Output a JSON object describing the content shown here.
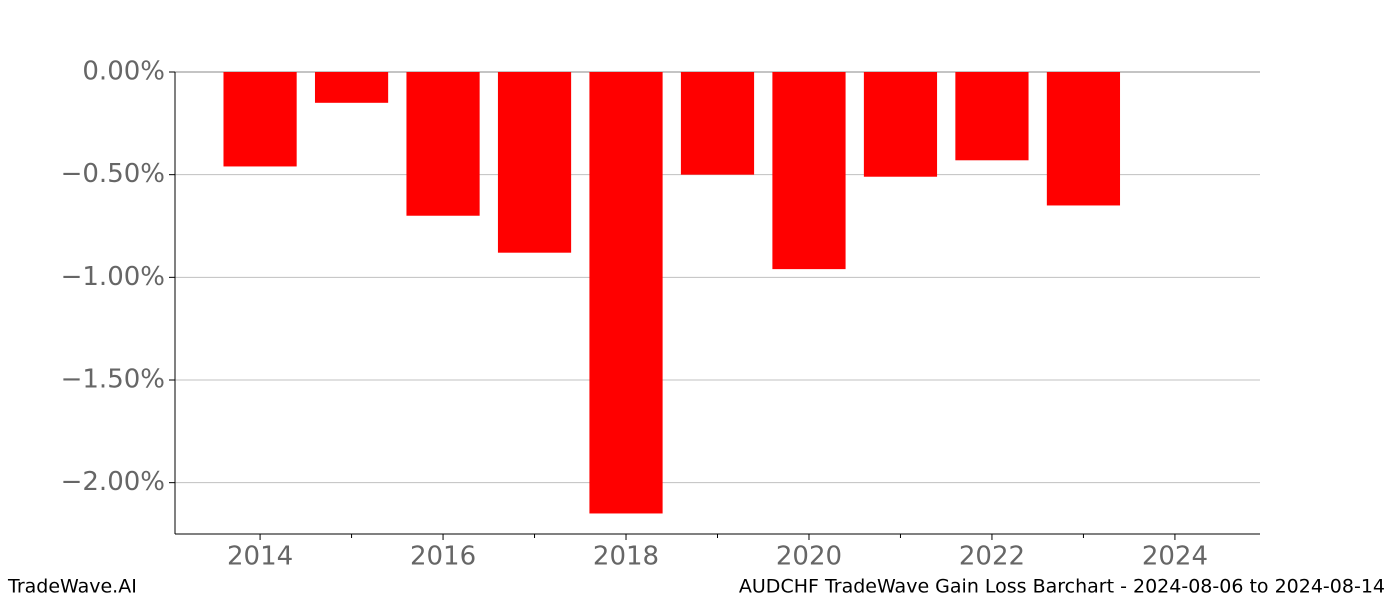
{
  "chart_data": {
    "type": "bar",
    "x": [
      2014,
      2015,
      2016,
      2017,
      2018,
      2019,
      2020,
      2021,
      2022,
      2023
    ],
    "values": [
      -0.46,
      -0.15,
      -0.7,
      -0.88,
      -2.15,
      -0.5,
      -0.96,
      -0.51,
      -0.43,
      -0.65
    ],
    "color": "#ff0000",
    "xlim": [
      2013.07,
      2024.93
    ],
    "xticks": [
      2014,
      2016,
      2018,
      2020,
      2022,
      2024
    ],
    "xticks_minor": [
      2015,
      2017,
      2019,
      2021,
      2023
    ],
    "ylim": [
      -2.25,
      0
    ],
    "yticks": [
      {
        "value": 0,
        "label": "0.00%"
      },
      {
        "value": -0.5,
        "label": "−0.50%"
      },
      {
        "value": -1,
        "label": "−1.00%"
      },
      {
        "value": -1.5,
        "label": "−1.50%"
      },
      {
        "value": -2,
        "label": "−2.00%"
      }
    ],
    "grid": true,
    "footer_left": "TradeWave.AI",
    "footer_right": "AUDCHF TradeWave Gain Loss Barchart - 2024-08-06 to 2024-08-14"
  }
}
